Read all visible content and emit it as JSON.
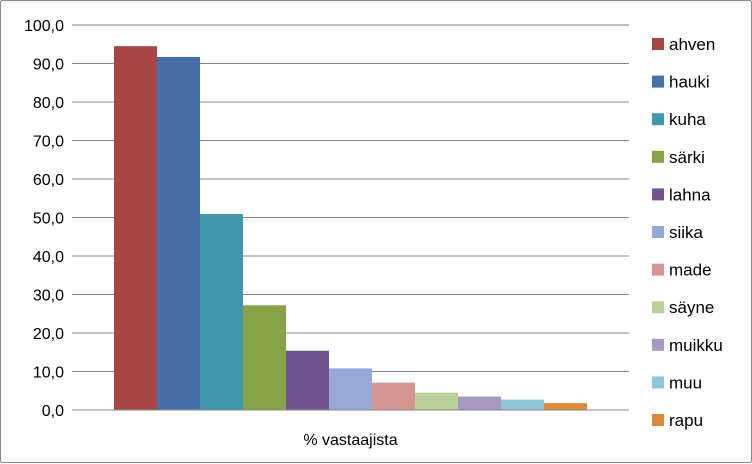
{
  "chart_data": {
    "type": "bar",
    "xlabel": "% vastaajista",
    "categories": [
      "% vastaajista"
    ],
    "ylim": [
      0,
      100
    ],
    "ytick_step": 10,
    "ytick_labels": [
      "0,0",
      "10,0",
      "20,0",
      "30,0",
      "40,0",
      "50,0",
      "60,0",
      "70,0",
      "80,0",
      "90,0",
      "100,0"
    ],
    "grid": true,
    "legend": "right",
    "series": [
      {
        "name": "ahven",
        "values": [
          94.5
        ],
        "color": "#A84644"
      },
      {
        "name": "hauki",
        "values": [
          91.7
        ],
        "color": "#4571A8"
      },
      {
        "name": "kuha",
        "values": [
          50.9
        ],
        "color": "#3F98AD"
      },
      {
        "name": "särki",
        "values": [
          27.2
        ],
        "color": "#86A345"
      },
      {
        "name": "lahna",
        "values": [
          15.4
        ],
        "color": "#70548F"
      },
      {
        "name": "siika",
        "values": [
          10.8
        ],
        "color": "#96A9D4"
      },
      {
        "name": "made",
        "values": [
          7.1
        ],
        "color": "#D49491"
      },
      {
        "name": "säyne",
        "values": [
          4.5
        ],
        "color": "#B9D09A"
      },
      {
        "name": "muikku",
        "values": [
          3.5
        ],
        "color": "#A699C1"
      },
      {
        "name": "muu",
        "values": [
          2.7
        ],
        "color": "#8FC7D8"
      },
      {
        "name": "rapu",
        "values": [
          1.8
        ],
        "color": "#DE8A3A"
      }
    ]
  }
}
